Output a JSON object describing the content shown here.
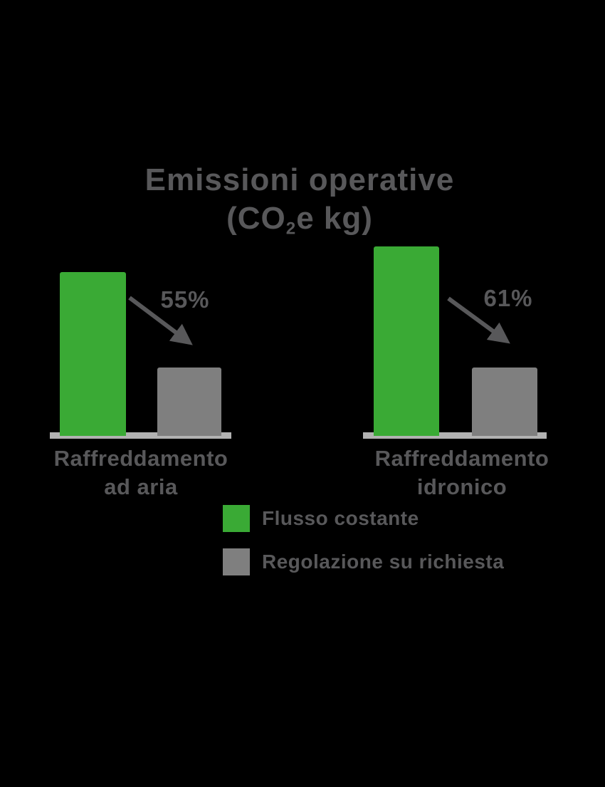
{
  "colors": {
    "background": "#000000",
    "green": "#3aaa35",
    "gray": "#7f7f7f",
    "baseline": "#b2b2b2",
    "text": "#58585a",
    "arrow": "#58585a"
  },
  "title": {
    "line1": "Emissioni operative",
    "line2_prefix": "(CO",
    "line2_sub": "2",
    "line2_suffix": "e kg)"
  },
  "chart": {
    "groups": [
      {
        "label_line1": "Raffreddamento",
        "label_line2": "ad aria",
        "percent": "55%",
        "green_height": 230,
        "gray_height": 96
      },
      {
        "label_line1": "Raffreddamento",
        "label_line2": "idronico",
        "percent": "61%",
        "green_height": 266,
        "gray_height": 96
      }
    ]
  },
  "legend": {
    "items": [
      {
        "label": "Flusso costante",
        "color": "#3aaa35"
      },
      {
        "label": "Regolazione su richiesta",
        "color": "#7f7f7f"
      }
    ]
  },
  "chart_data": {
    "type": "bar",
    "title": "Emissioni operative (CO2e kg)",
    "categories": [
      "Raffreddamento ad aria",
      "Raffreddamento idronico"
    ],
    "series": [
      {
        "name": "Flusso costante",
        "color": "#3aaa35",
        "values": [
          100,
          116
        ]
      },
      {
        "name": "Regolazione su richiesta",
        "color": "#7f7f7f",
        "values": [
          42,
          42
        ]
      }
    ],
    "annotations": [
      "55%",
      "61%"
    ],
    "xlabel": "",
    "ylabel": "",
    "axis": "none (pictorial comparison, bar values are relative heights, no numeric axis shown)",
    "grid": false,
    "legend_position": "bottom"
  }
}
